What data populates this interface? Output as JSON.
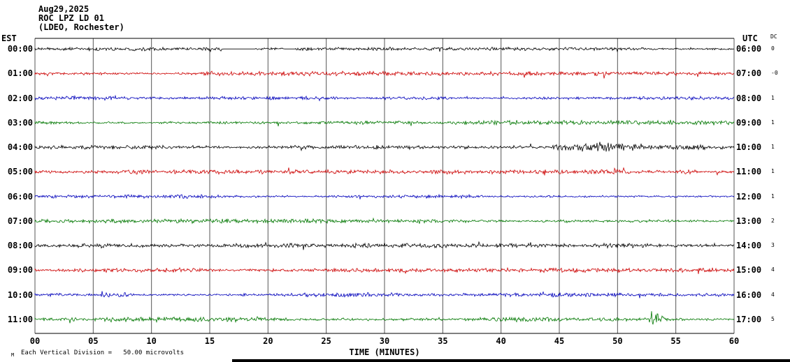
{
  "header": {
    "date": "Aug29,2025",
    "station": "ROC LPZ LD 01",
    "location": "(LDEO, Rochester)"
  },
  "footer": {
    "note": "Each Vertical Division =   50.00 microvolts",
    "corner_mark": "M"
  },
  "chart_data": {
    "type": "line",
    "subtype": "seismogram-helicorder",
    "title": "ROC LPZ LD 01 (LDEO, Rochester) Aug29,2025",
    "x_label": "TIME (MINUTES)",
    "left_label": "EST",
    "right_label": "UTC",
    "dc_label": "DC",
    "x_range": [
      0,
      60
    ],
    "minutes_per_line": 60,
    "vertical_division_microvolts": 50.0,
    "grid": true,
    "x_ticks": [
      "00",
      "05",
      "10",
      "15",
      "20",
      "25",
      "30",
      "35",
      "40",
      "45",
      "50",
      "55",
      "60"
    ],
    "trace_colors": [
      "#000000",
      "#cc0000",
      "#0000bb",
      "#007700"
    ],
    "rows": [
      {
        "est": "00:00",
        "utc": "06:00",
        "dc": "0",
        "color_index": 0,
        "base_amp": 0.9,
        "gaps": [
          [
            16.2,
            18.9
          ],
          [
            21.4,
            22.2
          ]
        ]
      },
      {
        "est": "01:00",
        "utc": "07:00",
        "dc": "-0",
        "color_index": 1,
        "base_amp": 1.1
      },
      {
        "est": "02:00",
        "utc": "08:00",
        "dc": "1",
        "color_index": 2,
        "base_amp": 1.1
      },
      {
        "est": "03:00",
        "utc": "09:00",
        "dc": "1",
        "color_index": 3,
        "base_amp": 1.15
      },
      {
        "est": "04:00",
        "utc": "10:00",
        "dc": "1",
        "color_index": 0,
        "base_amp": 1.1
      },
      {
        "est": "05:00",
        "utc": "11:00",
        "dc": "1",
        "color_index": 1,
        "base_amp": 1.1
      },
      {
        "est": "06:00",
        "utc": "12:00",
        "dc": "1",
        "color_index": 2,
        "base_amp": 1.0
      },
      {
        "est": "07:00",
        "utc": "13:00",
        "dc": "2",
        "color_index": 3,
        "base_amp": 1.15
      },
      {
        "est": "08:00",
        "utc": "14:00",
        "dc": "3",
        "color_index": 0,
        "base_amp": 1.1
      },
      {
        "est": "09:00",
        "utc": "15:00",
        "dc": "4",
        "color_index": 1,
        "base_amp": 1.1
      },
      {
        "est": "10:00",
        "utc": "16:00",
        "dc": "4",
        "color_index": 2,
        "base_amp": 1.05
      },
      {
        "est": "11:00",
        "utc": "17:00",
        "dc": "5",
        "color_index": 3,
        "base_amp": 1.15
      }
    ],
    "events": [
      {
        "row": 4,
        "start": 44,
        "end": 53,
        "amp": 3.2
      },
      {
        "row": 4,
        "start": 53,
        "end": 60,
        "amp": 1.7
      },
      {
        "row": 5,
        "start": 48,
        "end": 51,
        "amp": 2.2
      },
      {
        "row": 5,
        "start": 55,
        "end": 57,
        "amp": 1.6
      },
      {
        "row": 10,
        "start": 5.5,
        "end": 8.5,
        "amp": 1.8
      },
      {
        "row": 11,
        "start": 52.3,
        "end": 54.2,
        "amp": 3.6
      }
    ]
  }
}
